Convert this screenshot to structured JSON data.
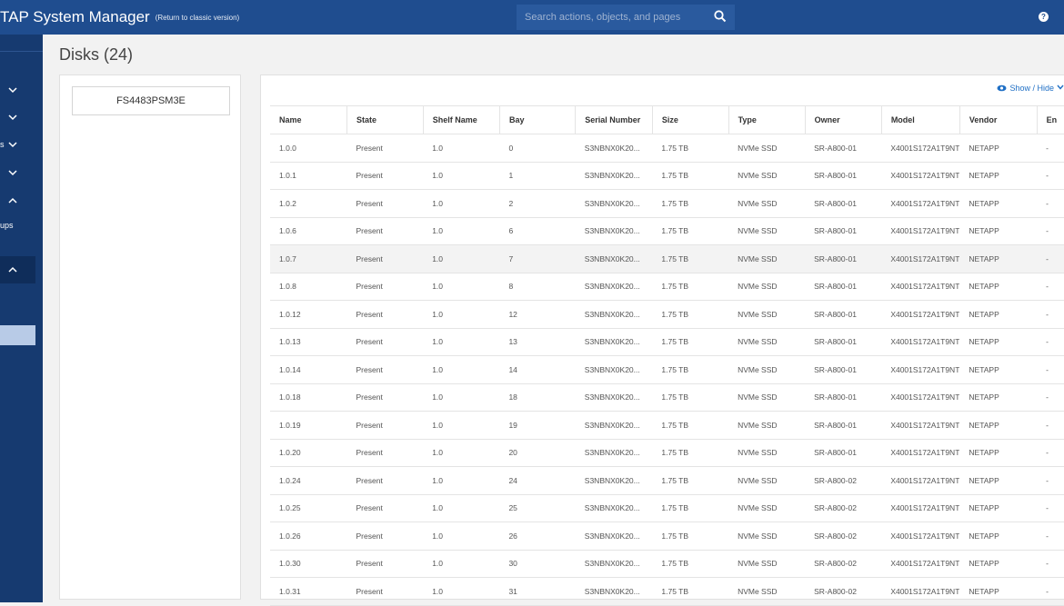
{
  "app": {
    "title": "TAP System Manager",
    "classic_link": "(Return to classic version)",
    "search_placeholder": "Search actions, objects, and pages"
  },
  "sidebar": {
    "fragments": [
      "s",
      "ups"
    ]
  },
  "page": {
    "title": "Disks (24)",
    "node": "FS4483PSM3E",
    "show_hide": "Show / Hide"
  },
  "table": {
    "columns": [
      "Name",
      "State",
      "Shelf Name",
      "Bay",
      "Serial Number",
      "Size",
      "Type",
      "Owner",
      "Model",
      "Vendor",
      "En"
    ],
    "rows": [
      [
        "1.0.0",
        "Present",
        "1.0",
        "0",
        "S3NBNX0K20...",
        "1.75 TB",
        "NVMe SSD",
        "SR-A800-01",
        "X4001S172A1T9NT",
        "NETAPP",
        "-"
      ],
      [
        "1.0.1",
        "Present",
        "1.0",
        "1",
        "S3NBNX0K20...",
        "1.75 TB",
        "NVMe SSD",
        "SR-A800-01",
        "X4001S172A1T9NT",
        "NETAPP",
        "-"
      ],
      [
        "1.0.2",
        "Present",
        "1.0",
        "2",
        "S3NBNX0K20...",
        "1.75 TB",
        "NVMe SSD",
        "SR-A800-01",
        "X4001S172A1T9NT",
        "NETAPP",
        "-"
      ],
      [
        "1.0.6",
        "Present",
        "1.0",
        "6",
        "S3NBNX0K20...",
        "1.75 TB",
        "NVMe SSD",
        "SR-A800-01",
        "X4001S172A1T9NT",
        "NETAPP",
        "-"
      ],
      [
        "1.0.7",
        "Present",
        "1.0",
        "7",
        "S3NBNX0K20...",
        "1.75 TB",
        "NVMe SSD",
        "SR-A800-01",
        "X4001S172A1T9NT",
        "NETAPP",
        "-"
      ],
      [
        "1.0.8",
        "Present",
        "1.0",
        "8",
        "S3NBNX0K20...",
        "1.75 TB",
        "NVMe SSD",
        "SR-A800-01",
        "X4001S172A1T9NT",
        "NETAPP",
        "-"
      ],
      [
        "1.0.12",
        "Present",
        "1.0",
        "12",
        "S3NBNX0K20...",
        "1.75 TB",
        "NVMe SSD",
        "SR-A800-01",
        "X4001S172A1T9NT",
        "NETAPP",
        "-"
      ],
      [
        "1.0.13",
        "Present",
        "1.0",
        "13",
        "S3NBNX0K20...",
        "1.75 TB",
        "NVMe SSD",
        "SR-A800-01",
        "X4001S172A1T9NT",
        "NETAPP",
        "-"
      ],
      [
        "1.0.14",
        "Present",
        "1.0",
        "14",
        "S3NBNX0K20...",
        "1.75 TB",
        "NVMe SSD",
        "SR-A800-01",
        "X4001S172A1T9NT",
        "NETAPP",
        "-"
      ],
      [
        "1.0.18",
        "Present",
        "1.0",
        "18",
        "S3NBNX0K20...",
        "1.75 TB",
        "NVMe SSD",
        "SR-A800-01",
        "X4001S172A1T9NT",
        "NETAPP",
        "-"
      ],
      [
        "1.0.19",
        "Present",
        "1.0",
        "19",
        "S3NBNX0K20...",
        "1.75 TB",
        "NVMe SSD",
        "SR-A800-01",
        "X4001S172A1T9NT",
        "NETAPP",
        "-"
      ],
      [
        "1.0.20",
        "Present",
        "1.0",
        "20",
        "S3NBNX0K20...",
        "1.75 TB",
        "NVMe SSD",
        "SR-A800-01",
        "X4001S172A1T9NT",
        "NETAPP",
        "-"
      ],
      [
        "1.0.24",
        "Present",
        "1.0",
        "24",
        "S3NBNX0K20...",
        "1.75 TB",
        "NVMe SSD",
        "SR-A800-02",
        "X4001S172A1T9NT",
        "NETAPP",
        "-"
      ],
      [
        "1.0.25",
        "Present",
        "1.0",
        "25",
        "S3NBNX0K20...",
        "1.75 TB",
        "NVMe SSD",
        "SR-A800-02",
        "X4001S172A1T9NT",
        "NETAPP",
        "-"
      ],
      [
        "1.0.26",
        "Present",
        "1.0",
        "26",
        "S3NBNX0K20...",
        "1.75 TB",
        "NVMe SSD",
        "SR-A800-02",
        "X4001S172A1T9NT",
        "NETAPP",
        "-"
      ],
      [
        "1.0.30",
        "Present",
        "1.0",
        "30",
        "S3NBNX0K20...",
        "1.75 TB",
        "NVMe SSD",
        "SR-A800-02",
        "X4001S172A1T9NT",
        "NETAPP",
        "-"
      ],
      [
        "1.0.31",
        "Present",
        "1.0",
        "31",
        "S3NBNX0K20...",
        "1.75 TB",
        "NVMe SSD",
        "SR-A800-02",
        "X4001S172A1T9NT",
        "NETAPP",
        "-"
      ]
    ]
  },
  "colors": {
    "topbar": "#1f4d8f",
    "sidebar": "#163a70",
    "accent": "#1f6fc5"
  }
}
